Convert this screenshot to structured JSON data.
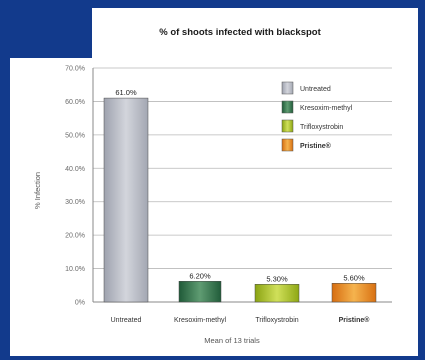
{
  "chart_data": {
    "type": "bar",
    "title": "% of shoots infected with blackspot",
    "xlabel": "Mean of 13 trials",
    "ylabel": "% Infection",
    "ylim": [
      0,
      70
    ],
    "yticks": [
      "0%",
      "10.0%",
      "20.0%",
      "30.0%",
      "40.0%",
      "50.0%",
      "60.0%",
      "70.0%"
    ],
    "categories": [
      "Untreated",
      "Kresoxim-methyl",
      "Trifloxystrobin",
      "Pristine®"
    ],
    "values": [
      61.0,
      6.2,
      5.3,
      5.6
    ],
    "data_labels": [
      "61.0%",
      "6.20%",
      "5.30%",
      "5.60%"
    ],
    "colors": [
      "#b9bcc6",
      "#2f6f4a",
      "#a8c21c",
      "#e8891c"
    ],
    "legend": {
      "placement": "top-right",
      "entries": [
        "Untreated",
        "Kresoxim-methyl",
        "Trifloxystrobin",
        "Pristine®"
      ]
    },
    "grid": true
  }
}
